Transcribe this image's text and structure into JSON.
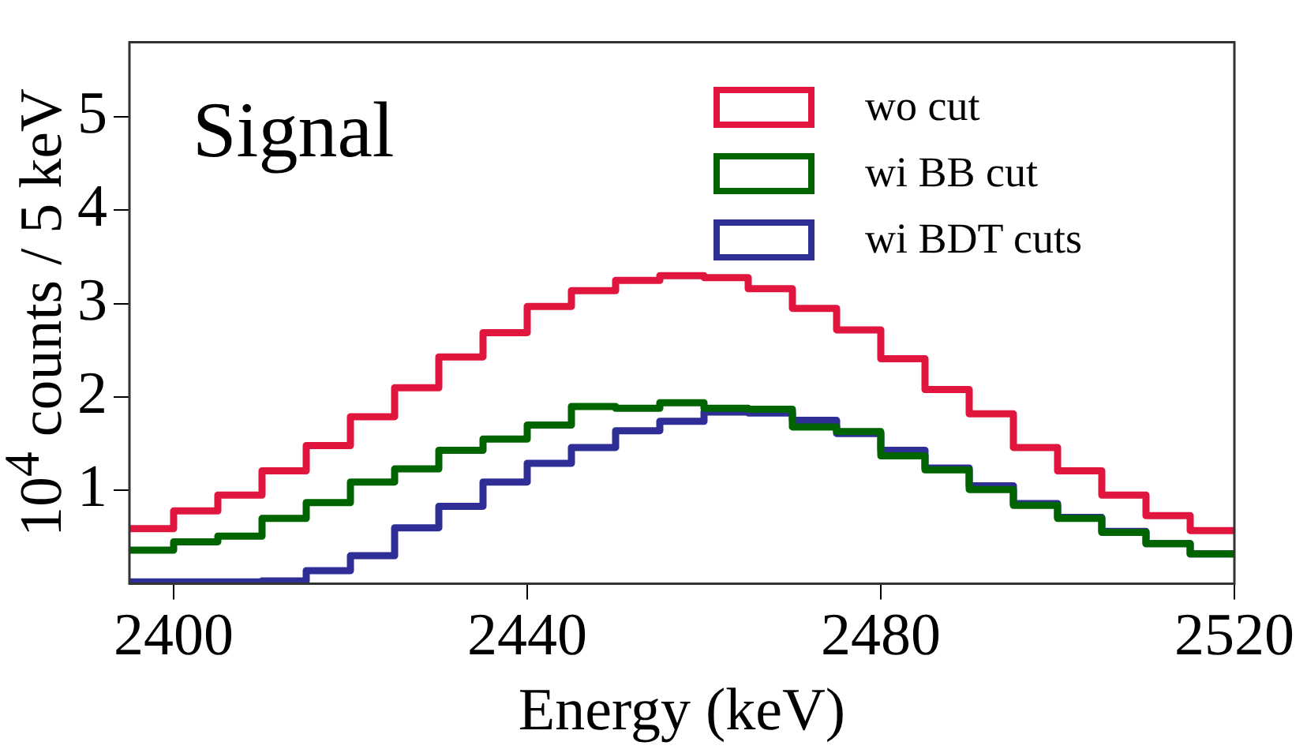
{
  "chart_data": {
    "type": "histogram",
    "title": "Signal",
    "xlabel": "Energy (keV)",
    "ylabel": "10$^{4}$ counts / 5 keV",
    "bins": [
      2395,
      2400,
      2405,
      2410,
      2415,
      2420,
      2425,
      2430,
      2435,
      2440,
      2445,
      2450,
      2455,
      2460,
      2465,
      2470,
      2475,
      2480,
      2485,
      2490,
      2495,
      2500,
      2505,
      2510,
      2515,
      2520
    ],
    "series": [
      {
        "name": "wo cut",
        "color": "#e0163f",
        "values": [
          0.59,
          0.78,
          0.95,
          1.21,
          1.48,
          1.79,
          2.1,
          2.43,
          2.69,
          2.97,
          3.14,
          3.25,
          3.3,
          3.28,
          3.16,
          2.95,
          2.72,
          2.41,
          2.08,
          1.82,
          1.46,
          1.21,
          0.95,
          0.73,
          0.57
        ]
      },
      {
        "name": "wi BB cut",
        "color": "#006400",
        "values": [
          0.36,
          0.45,
          0.51,
          0.7,
          0.87,
          1.09,
          1.23,
          1.43,
          1.55,
          1.7,
          1.9,
          1.88,
          1.94,
          1.88,
          1.87,
          1.68,
          1.63,
          1.37,
          1.22,
          1.01,
          0.84,
          0.7,
          0.55,
          0.43,
          0.32
        ]
      },
      {
        "name": "wi BDT cuts",
        "color": "#2e2e96",
        "values": [
          0.02,
          0.02,
          0.02,
          0.03,
          0.14,
          0.3,
          0.6,
          0.83,
          1.09,
          1.29,
          1.46,
          1.64,
          1.74,
          1.84,
          1.83,
          1.75,
          1.61,
          1.43,
          1.24,
          1.05,
          0.86,
          0.71,
          0.56,
          0.43,
          0.32
        ]
      }
    ],
    "xlim": [
      2395,
      2520
    ],
    "xticks": [
      2400,
      2440,
      2480,
      2520
    ],
    "ylim": [
      0,
      5.8
    ],
    "yticks": [
      1,
      2,
      3,
      4,
      5
    ],
    "grid": false,
    "legend": "top right"
  }
}
